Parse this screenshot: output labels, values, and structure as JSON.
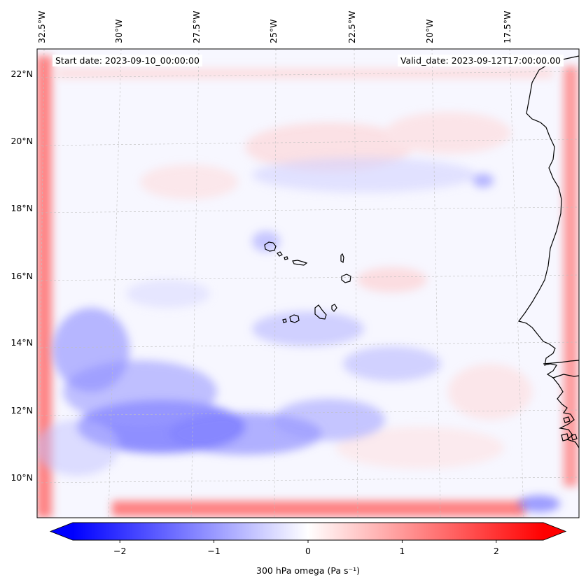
{
  "map": {
    "start_date": "Start date: 2023-09-10_00:00:00",
    "valid_date": "Valid_date: 2023-09-12T17:00:00.00",
    "lon_labels": [
      "32.5°W",
      "30°W",
      "27.5°W",
      "25°W",
      "22.5°W",
      "20°W",
      "17.5°W"
    ],
    "lat_labels": [
      "22°N",
      "20°N",
      "18°N",
      "16°N",
      "14°N",
      "12°N",
      "10°N"
    ],
    "extent": {
      "lon_min": -32.6,
      "lon_max": -15.4,
      "lat_min": 8.9,
      "lat_max": 22.8
    },
    "gridlines": true,
    "field": "300 hPa omega",
    "colormap": "bwr",
    "colors": {
      "negative": "#0000ff",
      "zero": "#ffffff",
      "positive": "#ff0000",
      "coast": "#000000",
      "grid": "#bbbbbb"
    }
  },
  "colorbar": {
    "label": "300 hPa omega (Pa s⁻¹)",
    "ticks": [
      "−2",
      "−1",
      "0",
      "1",
      "2"
    ],
    "tick_values": [
      -2,
      -1,
      0,
      1,
      2
    ],
    "range": [
      -2.5,
      2.5
    ],
    "extend": "both"
  }
}
